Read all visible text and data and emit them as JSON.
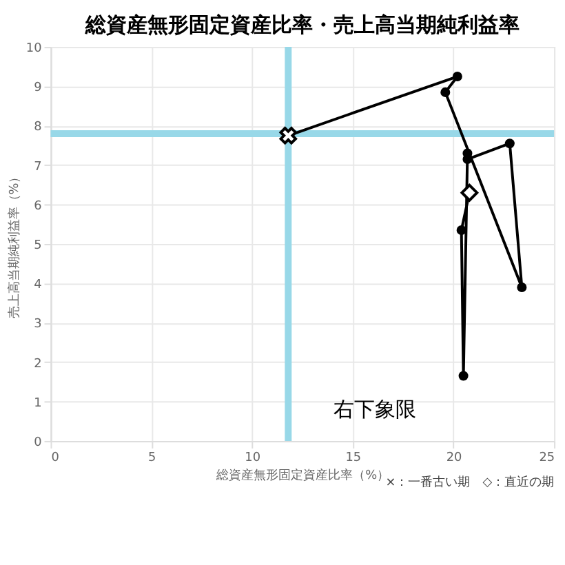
{
  "chart_data": {
    "type": "line",
    "title": "総資産無形固定資産比率・売上高当期純利益率",
    "xlabel": "総資産無形固定資産比率（%）",
    "ylabel": "売上高当期純利益率（%）",
    "xlim": [
      0,
      25
    ],
    "xticks": [
      0,
      5,
      10,
      15,
      20,
      25
    ],
    "ylim": [
      0,
      10
    ],
    "yticks": [
      0,
      1,
      2,
      3,
      4,
      5,
      6,
      7,
      8,
      9,
      10
    ],
    "grid": true,
    "marker": "circle",
    "line_style": "solid",
    "series": [
      {
        "color": "#000000",
        "x": [
          11.8,
          20.2,
          19.6,
          23.4,
          22.8,
          20.7,
          20.7,
          20.5,
          20.4,
          20.8
        ],
        "values": [
          7.75,
          9.25,
          8.85,
          3.9,
          7.55,
          7.15,
          7.3,
          1.65,
          5.35,
          6.3
        ]
      },
      {
        "type": "scatter",
        "marker": "cross",
        "color": "#000000",
        "x": [
          11.8
        ],
        "values": [
          7.75
        ]
      },
      {
        "type": "scatter",
        "marker": "diamond",
        "color": "#000000",
        "x": [
          20.8
        ],
        "values": [
          6.3
        ]
      }
    ],
    "ref_lines": [
      {
        "axis": "x",
        "value": 11.8,
        "color": "#98d8e8"
      },
      {
        "axis": "y",
        "value": 7.8,
        "color": "#98d8e8"
      }
    ],
    "annotations": [
      "右下象限",
      "×：一番古い期　◇：直近の期"
    ]
  }
}
